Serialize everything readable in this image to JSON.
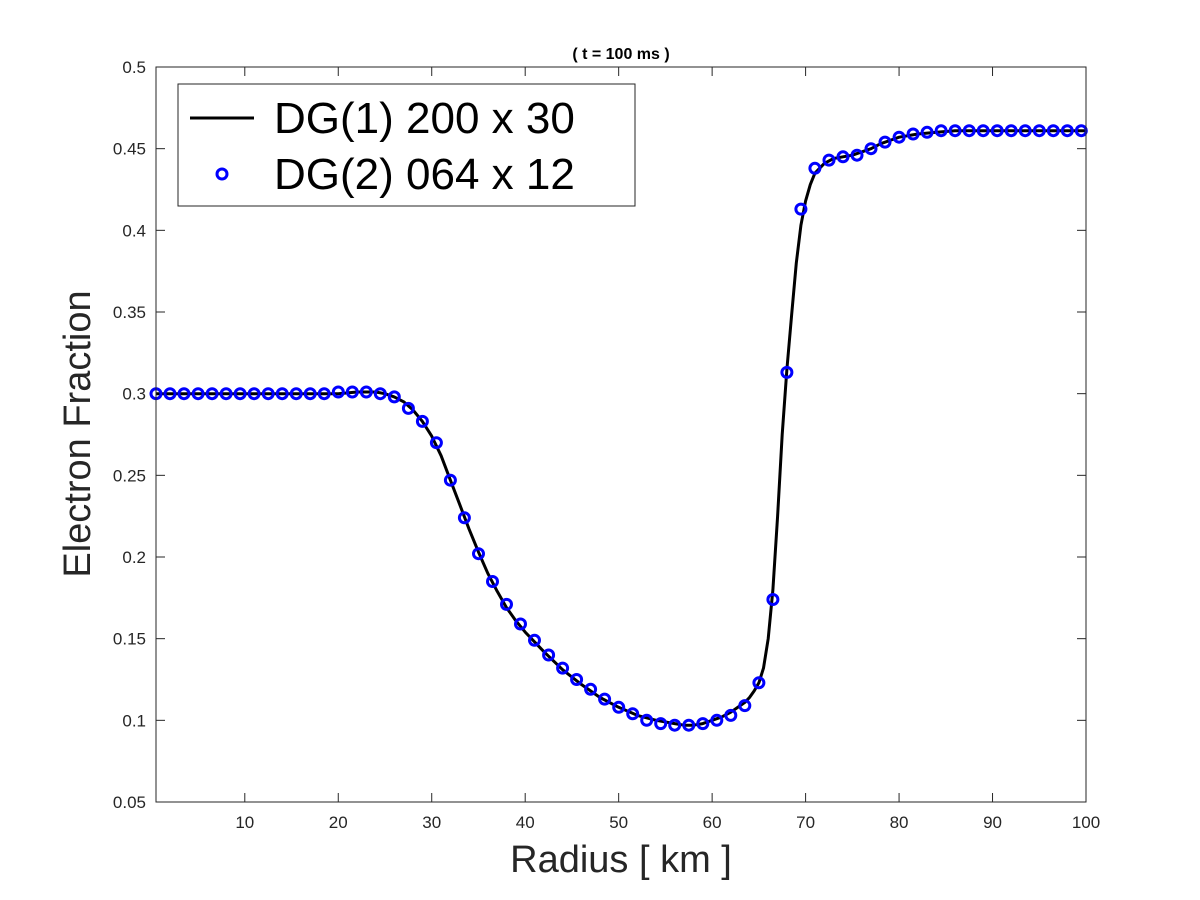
{
  "chart_data": {
    "type": "line",
    "title": "( t = 100 ms )",
    "xlabel": "Radius [ km ]",
    "ylabel": "Electron Fraction",
    "xlim": [
      0.5,
      100
    ],
    "ylim": [
      0.05,
      0.5
    ],
    "xticks": [
      10,
      20,
      30,
      40,
      50,
      60,
      70,
      80,
      90,
      100
    ],
    "yticks": [
      0.05,
      0.1,
      0.15,
      0.2,
      0.25,
      0.3,
      0.35,
      0.4,
      0.45,
      0.5
    ],
    "xtick_labels": [
      "10",
      "20",
      "30",
      "40",
      "50",
      "60",
      "70",
      "80",
      "90",
      "100"
    ],
    "ytick_labels": [
      "0.05",
      "0.1",
      "0.15",
      "0.2",
      "0.25",
      "0.3",
      "0.35",
      "0.4",
      "0.45",
      "0.5"
    ],
    "grid": false,
    "legend_position": "top-left",
    "series": [
      {
        "name": "DG(1) 200 x 30",
        "style": "line",
        "color": "#000000",
        "x": [
          0.5,
          5,
          10,
          15,
          20,
          22,
          24,
          25,
          26,
          27,
          28,
          29,
          30,
          31,
          32,
          33,
          34,
          35,
          36,
          37,
          38,
          39,
          40,
          42,
          44,
          46,
          48,
          50,
          52,
          54,
          56,
          57,
          58,
          59,
          60,
          61,
          62,
          63,
          63.5,
          64,
          64.5,
          65,
          65.5,
          66,
          66.5,
          67,
          67.5,
          68,
          68.5,
          69,
          69.5,
          70,
          70.5,
          71,
          72,
          73,
          74,
          75,
          76,
          77,
          78,
          79,
          80,
          82,
          84,
          86,
          88,
          90,
          95,
          100
        ],
        "y": [
          0.3,
          0.3,
          0.3,
          0.3,
          0.3,
          0.301,
          0.301,
          0.3,
          0.298,
          0.295,
          0.29,
          0.283,
          0.274,
          0.262,
          0.247,
          0.232,
          0.217,
          0.203,
          0.19,
          0.179,
          0.169,
          0.161,
          0.154,
          0.142,
          0.131,
          0.122,
          0.114,
          0.108,
          0.103,
          0.1,
          0.098,
          0.097,
          0.097,
          0.098,
          0.1,
          0.102,
          0.105,
          0.109,
          0.111,
          0.114,
          0.118,
          0.123,
          0.132,
          0.15,
          0.18,
          0.225,
          0.275,
          0.315,
          0.348,
          0.38,
          0.403,
          0.418,
          0.428,
          0.435,
          0.441,
          0.444,
          0.445,
          0.446,
          0.448,
          0.45,
          0.453,
          0.455,
          0.457,
          0.459,
          0.46,
          0.461,
          0.461,
          0.461,
          0.461,
          0.461
        ]
      },
      {
        "name": "DG(2) 064 x 12",
        "style": "markers",
        "marker": "circle",
        "color": "#0000ff",
        "x": [
          0.5,
          2,
          3.5,
          5,
          6.5,
          8,
          9.5,
          11,
          12.5,
          14,
          15.5,
          17,
          18.5,
          20,
          21.5,
          23,
          24.5,
          26,
          27.5,
          29,
          30.5,
          32,
          33.5,
          35,
          36.5,
          38,
          39.5,
          41,
          42.5,
          44,
          45.5,
          47,
          48.5,
          50,
          51.5,
          53,
          54.5,
          56,
          57.5,
          59,
          60.5,
          62,
          63.5,
          65,
          66.5,
          68,
          69.5,
          71,
          72.5,
          74,
          75.5,
          77,
          78.5,
          80,
          81.5,
          83,
          84.5,
          86,
          87.5,
          89,
          90.5,
          92,
          93.5,
          95,
          96.5,
          98,
          99.5
        ],
        "y": [
          0.3,
          0.3,
          0.3,
          0.3,
          0.3,
          0.3,
          0.3,
          0.3,
          0.3,
          0.3,
          0.3,
          0.3,
          0.3,
          0.301,
          0.301,
          0.301,
          0.3,
          0.298,
          0.291,
          0.283,
          0.27,
          0.247,
          0.224,
          0.202,
          0.185,
          0.171,
          0.159,
          0.149,
          0.14,
          0.132,
          0.125,
          0.119,
          0.113,
          0.108,
          0.104,
          0.1,
          0.098,
          0.097,
          0.097,
          0.098,
          0.1,
          0.103,
          0.109,
          0.123,
          0.174,
          0.313,
          0.413,
          0.438,
          0.443,
          0.445,
          0.446,
          0.45,
          0.454,
          0.457,
          0.459,
          0.46,
          0.461,
          0.461,
          0.461,
          0.461,
          0.461,
          0.461,
          0.461,
          0.461,
          0.461,
          0.461,
          0.461
        ]
      }
    ]
  }
}
